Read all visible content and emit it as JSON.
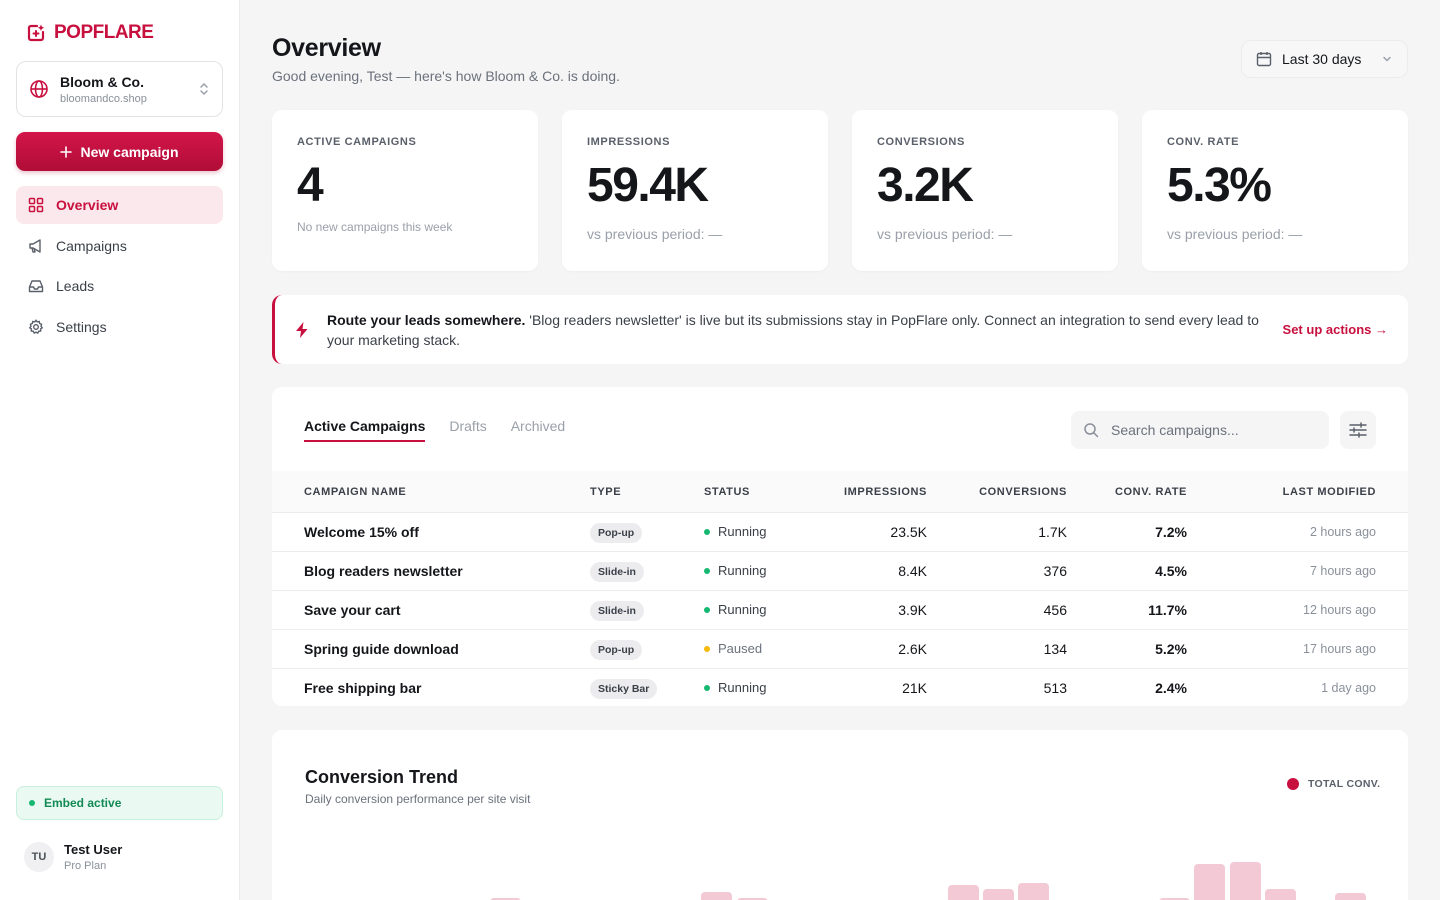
{
  "brand": {
    "name": "POPFLARE",
    "color": "#c8103f"
  },
  "workspace": {
    "name": "Bloom & Co.",
    "domain": "bloomandco.shop"
  },
  "new_campaign_label": "New campaign",
  "nav": [
    {
      "label": "Overview",
      "icon": "grid-icon",
      "active": true
    },
    {
      "label": "Campaigns",
      "icon": "megaphone-icon"
    },
    {
      "label": "Leads",
      "icon": "inbox-icon"
    },
    {
      "label": "Settings",
      "icon": "gear-icon"
    }
  ],
  "embed_status": "Embed active",
  "user": {
    "initials": "TU",
    "name": "Test User",
    "plan": "Pro Plan"
  },
  "header": {
    "title": "Overview",
    "subtitle": "Good evening, Test — here's how Bloom & Co. is doing.",
    "date_range": "Last 30 days"
  },
  "stats": [
    {
      "label": "ACTIVE CAMPAIGNS",
      "value": "4",
      "note": "No new campaigns this week"
    },
    {
      "label": "IMPRESSIONS",
      "value": "59.4K",
      "note": "vs previous period: —"
    },
    {
      "label": "CONVERSIONS",
      "value": "3.2K",
      "note": "vs previous period: —"
    },
    {
      "label": "CONV. RATE",
      "value": "5.3%",
      "note": "vs previous period: —"
    }
  ],
  "alert": {
    "title": "Route your leads somewhere.",
    "message": "'Blog readers newsletter' is live but its submissions stay in PopFlare only. Connect an integration to send every lead to your marketing stack.",
    "action": "Set up actions →"
  },
  "campaigns": {
    "tabs": [
      "Active Campaigns",
      "Drafts",
      "Archived"
    ],
    "search_placeholder": "Search campaigns...",
    "columns": [
      "CAMPAIGN NAME",
      "TYPE",
      "STATUS",
      "IMPRESSIONS",
      "CONVERSIONS",
      "CONV. RATE",
      "LAST MODIFIED"
    ],
    "rows": [
      {
        "name": "Welcome 15% off",
        "type": "Pop-up",
        "status": "Running",
        "impressions": "23.5K",
        "conversions": "1.7K",
        "rate": "7.2%",
        "modified": "2 hours ago"
      },
      {
        "name": "Blog readers newsletter",
        "type": "Slide-in",
        "status": "Running",
        "impressions": "8.4K",
        "conversions": "376",
        "rate": "4.5%",
        "modified": "7 hours ago"
      },
      {
        "name": "Save your cart",
        "type": "Slide-in",
        "status": "Running",
        "impressions": "3.9K",
        "conversions": "456",
        "rate": "11.7%",
        "modified": "12 hours ago"
      },
      {
        "name": "Spring guide download",
        "type": "Pop-up",
        "status": "Paused",
        "impressions": "2.6K",
        "conversions": "134",
        "rate": "5.2%",
        "modified": "17 hours ago"
      },
      {
        "name": "Free shipping bar",
        "type": "Sticky Bar",
        "status": "Running",
        "impressions": "21K",
        "conversions": "513",
        "rate": "2.4%",
        "modified": "1 day ago"
      }
    ],
    "status_colors": {
      "Running": "#16b871",
      "Paused": "#f5b90a"
    }
  },
  "trend": {
    "title": "Conversion Trend",
    "subtitle": "Daily conversion performance per site visit",
    "legend": "TOTAL CONV.",
    "bar_color": "#f2c9d4"
  }
}
